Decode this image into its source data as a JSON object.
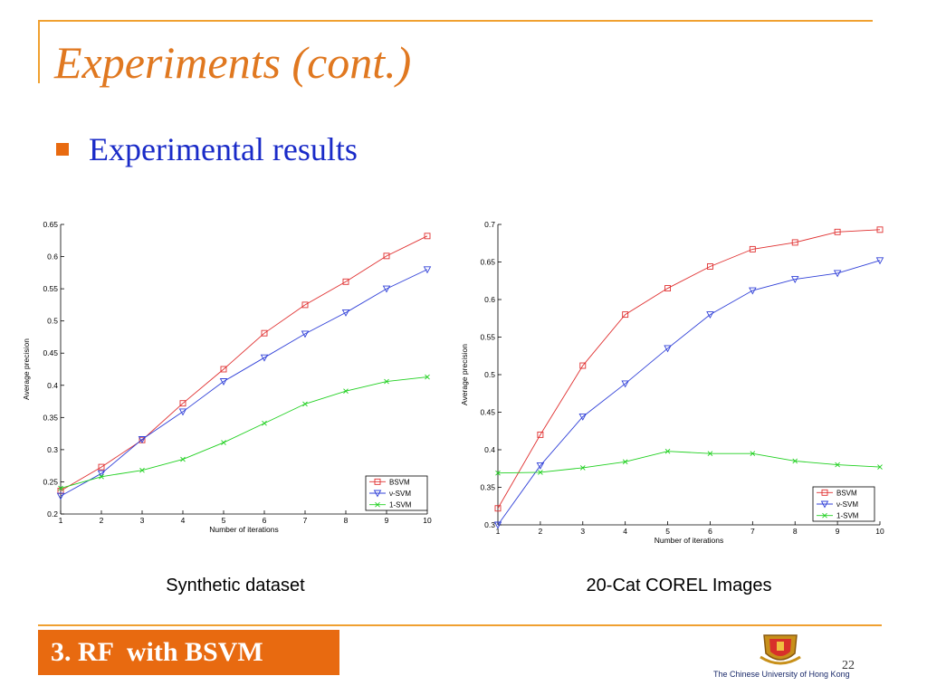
{
  "slide": {
    "title": "Experiments (cont.)",
    "bullet": "Experimental results",
    "footer_label": "3. RF  with BSVM",
    "university": "The Chinese University of Hong Kong",
    "page_number": "22",
    "colors": {
      "accent": "#e86a10",
      "title": "#e07820",
      "bullet_text": "#1a2bc8",
      "frame": "#f0a030"
    },
    "logo_icon": "university-crest-icon"
  },
  "captions": {
    "left": "Synthetic dataset",
    "right": "20-Cat COREL Images"
  },
  "chart_data": [
    {
      "type": "line",
      "xlabel": "Number of iterations",
      "ylabel": "Average precision",
      "x": [
        1,
        2,
        3,
        4,
        5,
        6,
        7,
        8,
        9,
        10
      ],
      "xlim": [
        1,
        10
      ],
      "ylim": [
        0.2,
        0.65
      ],
      "yticks": [
        0.2,
        0.25,
        0.3,
        0.35,
        0.4,
        0.45,
        0.5,
        0.55,
        0.6,
        0.65
      ],
      "yticklabels": [
        "0.2",
        "0.25",
        "0.3",
        "0.35",
        "0.4",
        "0.45",
        "0.5",
        "0.55",
        "0.6",
        "0.65"
      ],
      "legend_position": "bottom-right",
      "grid": false,
      "series": [
        {
          "name": "BSVM",
          "color": "#e03030",
          "marker": "square",
          "values": [
            0.236,
            0.273,
            0.315,
            0.372,
            0.425,
            0.481,
            0.525,
            0.561,
            0.601,
            0.632
          ]
        },
        {
          "name": "ν-SVM",
          "color": "#3040d8",
          "marker": "triangle-down",
          "values": [
            0.228,
            0.263,
            0.316,
            0.359,
            0.406,
            0.443,
            0.48,
            0.513,
            0.55,
            0.58
          ]
        },
        {
          "name": "1-SVM",
          "color": "#20d020",
          "marker": "x",
          "values": [
            0.24,
            0.258,
            0.268,
            0.285,
            0.311,
            0.341,
            0.371,
            0.391,
            0.406,
            0.413
          ]
        }
      ]
    },
    {
      "type": "line",
      "xlabel": "Number of iterations",
      "ylabel": "Average precision",
      "x": [
        1,
        2,
        3,
        4,
        5,
        6,
        7,
        8,
        9,
        10
      ],
      "xlim": [
        1,
        10
      ],
      "ylim": [
        0.3,
        0.7
      ],
      "yticks": [
        0.3,
        0.35,
        0.4,
        0.45,
        0.5,
        0.55,
        0.6,
        0.65,
        0.7
      ],
      "yticklabels": [
        "0.3",
        "0.35",
        "0.4",
        "0.45",
        "0.5",
        "0.55",
        "0.6",
        "0.65",
        "0.7"
      ],
      "legend_position": "bottom-right",
      "grid": false,
      "series": [
        {
          "name": "BSVM",
          "color": "#e03030",
          "marker": "square",
          "values": [
            0.322,
            0.42,
            0.512,
            0.58,
            0.615,
            0.644,
            0.667,
            0.676,
            0.69,
            0.693
          ]
        },
        {
          "name": "ν-SVM",
          "color": "#3040d8",
          "marker": "triangle-down",
          "values": [
            0.3,
            0.379,
            0.444,
            0.488,
            0.535,
            0.58,
            0.612,
            0.627,
            0.635,
            0.652
          ]
        },
        {
          "name": "1-SVM",
          "color": "#20d020",
          "marker": "x",
          "values": [
            0.369,
            0.37,
            0.376,
            0.384,
            0.398,
            0.395,
            0.395,
            0.385,
            0.38,
            0.377
          ]
        }
      ]
    }
  ]
}
